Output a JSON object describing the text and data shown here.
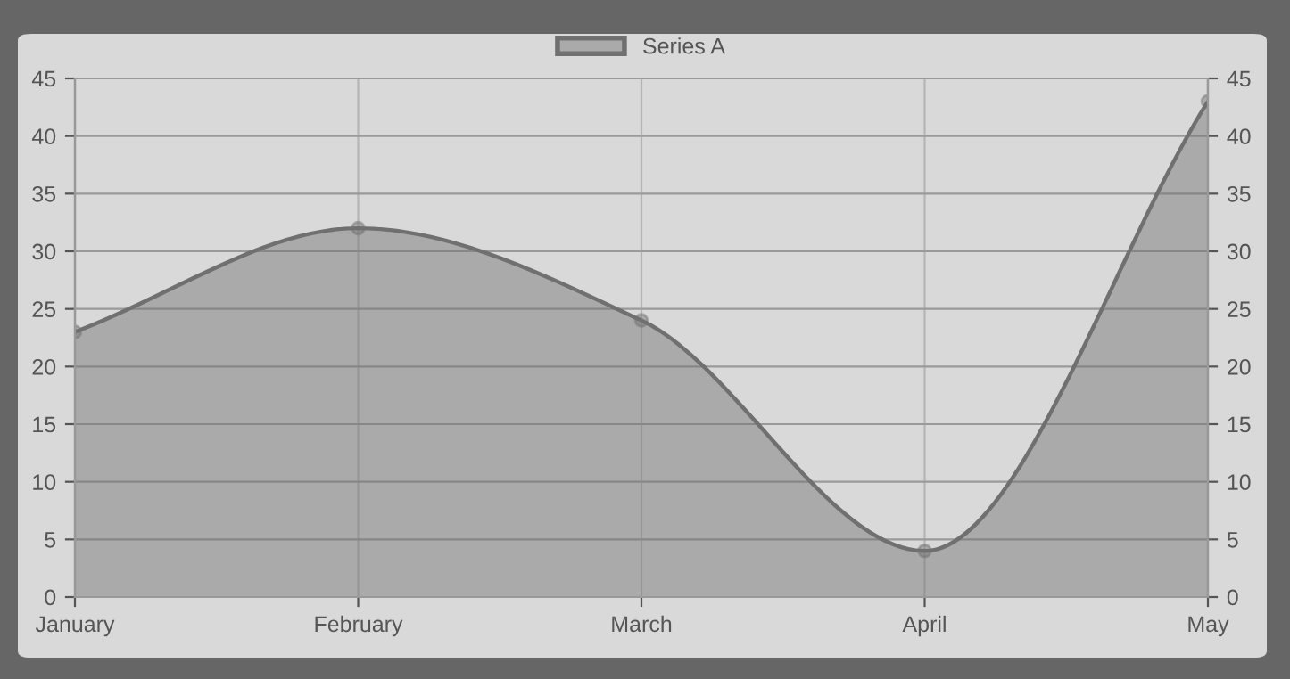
{
  "chart_data": {
    "type": "area",
    "categories": [
      "January",
      "February",
      "March",
      "April",
      "May"
    ],
    "series": [
      {
        "name": "Series A",
        "color": "#707070",
        "values": [
          23,
          32,
          24,
          4,
          43
        ]
      }
    ],
    "ylim": [
      0,
      45
    ],
    "yticks": [
      0,
      5,
      10,
      15,
      20,
      25,
      30,
      35,
      40,
      45
    ],
    "y2lim": [
      0,
      45
    ],
    "y2ticks": [
      0,
      5,
      10,
      15,
      20,
      25,
      30,
      35,
      40,
      45
    ],
    "grid": true,
    "legend": "top",
    "marker": "circle",
    "line_style": "solid"
  }
}
